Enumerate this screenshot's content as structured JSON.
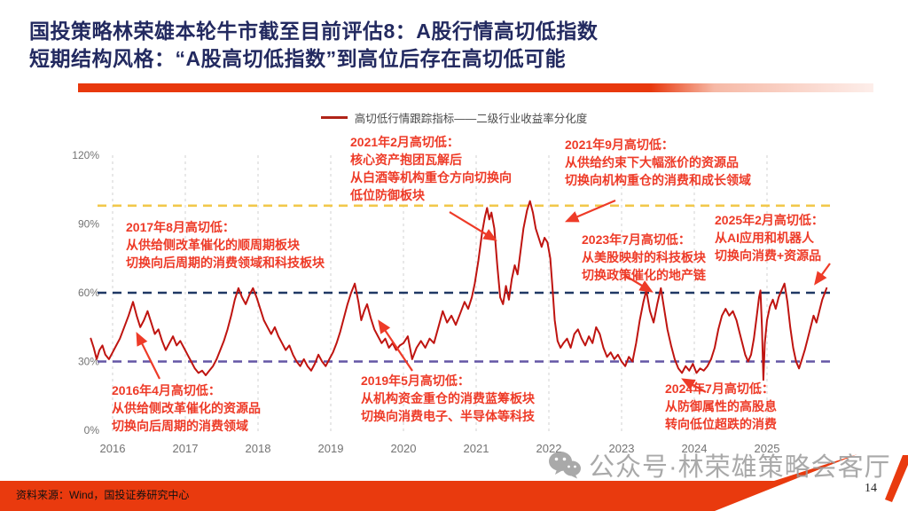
{
  "title": {
    "line1": "国投策略林荣雄本轮牛市截至目前评估8：A股行情高切低指数",
    "line2": "短期结构风格：“A股高切低指数”到高位后存在高切低可能"
  },
  "legend": {
    "label": "高切低行情跟踪指标——二级行业收益率分化度"
  },
  "colors": {
    "accent_red": "#e93a0e",
    "title_navy": "#232a60",
    "series_red": "#bf1410",
    "annotation_red": "#ee3b28",
    "ref_yellow": "#f2c84b",
    "ref_navy": "#1f3864",
    "ref_purple": "#6456a5",
    "grid_gray": "#d9d9d9",
    "axis_gray": "#737373"
  },
  "chart_data": {
    "type": "line",
    "title": "高切低行情跟踪指标——二级行业收益率分化度",
    "xlabel": "",
    "ylabel": "",
    "xlim": [
      2015.65,
      2025.95
    ],
    "ylim": [
      0,
      120
    ],
    "grid": "vertical-dashed",
    "legend_position": "top-center",
    "line_color": "#bf1410",
    "x_ticks": [
      2016,
      2017,
      2018,
      2019,
      2020,
      2021,
      2022,
      2023,
      2024,
      2025
    ],
    "y_ticks": [
      {
        "value": 120,
        "label": "120%"
      },
      {
        "value": 90,
        "label": "90%"
      },
      {
        "value": 60,
        "label": "60%"
      },
      {
        "value": 30,
        "label": "30%"
      },
      {
        "value": 0,
        "label": "0%"
      }
    ],
    "reference_lines": [
      {
        "value": 98,
        "color": "#f2c84b",
        "style": "dashed"
      },
      {
        "value": 60,
        "color": "#1f3864",
        "style": "dashed"
      },
      {
        "value": 30,
        "color": "#6456a5",
        "style": "dashed"
      }
    ],
    "points": [
      [
        2015.7,
        40
      ],
      [
        2015.74,
        36
      ],
      [
        2015.78,
        31
      ],
      [
        2015.82,
        35
      ],
      [
        2015.86,
        37
      ],
      [
        2015.9,
        33
      ],
      [
        2015.95,
        31
      ],
      [
        2016.0,
        34
      ],
      [
        2016.05,
        37
      ],
      [
        2016.1,
        40
      ],
      [
        2016.16,
        45
      ],
      [
        2016.22,
        50
      ],
      [
        2016.28,
        56
      ],
      [
        2016.33,
        50
      ],
      [
        2016.38,
        45
      ],
      [
        2016.43,
        48
      ],
      [
        2016.48,
        52
      ],
      [
        2016.53,
        47
      ],
      [
        2016.58,
        42
      ],
      [
        2016.63,
        44
      ],
      [
        2016.68,
        39
      ],
      [
        2016.73,
        35
      ],
      [
        2016.78,
        38
      ],
      [
        2016.83,
        41
      ],
      [
        2016.88,
        37
      ],
      [
        2016.93,
        39
      ],
      [
        2016.98,
        36
      ],
      [
        2017.03,
        33
      ],
      [
        2017.08,
        30
      ],
      [
        2017.13,
        27
      ],
      [
        2017.18,
        25
      ],
      [
        2017.23,
        26
      ],
      [
        2017.28,
        24
      ],
      [
        2017.33,
        26
      ],
      [
        2017.38,
        28
      ],
      [
        2017.43,
        31
      ],
      [
        2017.48,
        35
      ],
      [
        2017.53,
        39
      ],
      [
        2017.58,
        44
      ],
      [
        2017.63,
        50
      ],
      [
        2017.68,
        57
      ],
      [
        2017.73,
        62
      ],
      [
        2017.78,
        58
      ],
      [
        2017.83,
        55
      ],
      [
        2017.88,
        59
      ],
      [
        2017.93,
        62
      ],
      [
        2017.98,
        58
      ],
      [
        2018.03,
        53
      ],
      [
        2018.08,
        48
      ],
      [
        2018.13,
        45
      ],
      [
        2018.18,
        42
      ],
      [
        2018.23,
        45
      ],
      [
        2018.28,
        41
      ],
      [
        2018.33,
        38
      ],
      [
        2018.38,
        35
      ],
      [
        2018.43,
        37
      ],
      [
        2018.48,
        33
      ],
      [
        2018.53,
        30
      ],
      [
        2018.58,
        28
      ],
      [
        2018.63,
        31
      ],
      [
        2018.68,
        28
      ],
      [
        2018.73,
        26
      ],
      [
        2018.78,
        29
      ],
      [
        2018.83,
        33
      ],
      [
        2018.88,
        30
      ],
      [
        2018.93,
        28
      ],
      [
        2018.98,
        31
      ],
      [
        2019.03,
        34
      ],
      [
        2019.08,
        38
      ],
      [
        2019.13,
        43
      ],
      [
        2019.18,
        49
      ],
      [
        2019.23,
        55
      ],
      [
        2019.28,
        60
      ],
      [
        2019.33,
        64
      ],
      [
        2019.38,
        56
      ],
      [
        2019.42,
        48
      ],
      [
        2019.46,
        52
      ],
      [
        2019.5,
        55
      ],
      [
        2019.55,
        49
      ],
      [
        2019.6,
        44
      ],
      [
        2019.65,
        41
      ],
      [
        2019.7,
        38
      ],
      [
        2019.75,
        40
      ],
      [
        2019.8,
        36
      ],
      [
        2019.85,
        38
      ],
      [
        2019.9,
        35
      ],
      [
        2019.95,
        37
      ],
      [
        2020.0,
        38
      ],
      [
        2020.06,
        41
      ],
      [
        2020.12,
        31
      ],
      [
        2020.18,
        36
      ],
      [
        2020.24,
        39
      ],
      [
        2020.3,
        36
      ],
      [
        2020.36,
        40
      ],
      [
        2020.42,
        38
      ],
      [
        2020.48,
        45
      ],
      [
        2020.54,
        52
      ],
      [
        2020.6,
        47
      ],
      [
        2020.66,
        50
      ],
      [
        2020.72,
        46
      ],
      [
        2020.78,
        51
      ],
      [
        2020.84,
        56
      ],
      [
        2020.89,
        53
      ],
      [
        2020.94,
        58
      ],
      [
        2020.98,
        64
      ],
      [
        2021.03,
        74
      ],
      [
        2021.08,
        86
      ],
      [
        2021.12,
        93
      ],
      [
        2021.15,
        97
      ],
      [
        2021.18,
        92
      ],
      [
        2021.21,
        95
      ],
      [
        2021.25,
        88
      ],
      [
        2021.29,
        72
      ],
      [
        2021.33,
        58
      ],
      [
        2021.37,
        55
      ],
      [
        2021.41,
        63
      ],
      [
        2021.45,
        57
      ],
      [
        2021.49,
        66
      ],
      [
        2021.53,
        72
      ],
      [
        2021.57,
        68
      ],
      [
        2021.61,
        78
      ],
      [
        2021.65,
        88
      ],
      [
        2021.7,
        96
      ],
      [
        2021.74,
        100
      ],
      [
        2021.78,
        95
      ],
      [
        2021.82,
        88
      ],
      [
        2021.86,
        84
      ],
      [
        2021.9,
        80
      ],
      [
        2021.94,
        84
      ],
      [
        2021.98,
        82
      ],
      [
        2022.02,
        75
      ],
      [
        2022.05,
        62
      ],
      [
        2022.08,
        48
      ],
      [
        2022.12,
        39
      ],
      [
        2022.16,
        36
      ],
      [
        2022.2,
        38
      ],
      [
        2022.25,
        40
      ],
      [
        2022.3,
        36
      ],
      [
        2022.35,
        42
      ],
      [
        2022.4,
        44
      ],
      [
        2022.45,
        40
      ],
      [
        2022.5,
        37
      ],
      [
        2022.55,
        41
      ],
      [
        2022.6,
        38
      ],
      [
        2022.65,
        45
      ],
      [
        2022.7,
        42
      ],
      [
        2022.75,
        36
      ],
      [
        2022.8,
        32
      ],
      [
        2022.85,
        34
      ],
      [
        2022.9,
        31
      ],
      [
        2022.95,
        33
      ],
      [
        2023.0,
        30
      ],
      [
        2023.05,
        28
      ],
      [
        2023.1,
        32
      ],
      [
        2023.15,
        30
      ],
      [
        2023.2,
        38
      ],
      [
        2023.25,
        48
      ],
      [
        2023.3,
        56
      ],
      [
        2023.34,
        61
      ],
      [
        2023.39,
        52
      ],
      [
        2023.44,
        47
      ],
      [
        2023.49,
        55
      ],
      [
        2023.54,
        62
      ],
      [
        2023.58,
        54
      ],
      [
        2023.63,
        44
      ],
      [
        2023.68,
        37
      ],
      [
        2023.73,
        31
      ],
      [
        2023.78,
        27
      ],
      [
        2023.83,
        25
      ],
      [
        2023.88,
        28
      ],
      [
        2023.93,
        26
      ],
      [
        2023.98,
        29
      ],
      [
        2024.03,
        25
      ],
      [
        2024.08,
        27
      ],
      [
        2024.13,
        26
      ],
      [
        2024.18,
        28
      ],
      [
        2024.23,
        31
      ],
      [
        2024.28,
        36
      ],
      [
        2024.33,
        44
      ],
      [
        2024.38,
        50
      ],
      [
        2024.43,
        53
      ],
      [
        2024.48,
        50
      ],
      [
        2024.53,
        52
      ],
      [
        2024.58,
        48
      ],
      [
        2024.62,
        43
      ],
      [
        2024.66,
        38
      ],
      [
        2024.7,
        33
      ],
      [
        2024.74,
        30
      ],
      [
        2024.78,
        33
      ],
      [
        2024.82,
        40
      ],
      [
        2024.86,
        50
      ],
      [
        2024.89,
        58
      ],
      [
        2024.91,
        61
      ],
      [
        2024.93,
        45
      ],
      [
        2024.95,
        22
      ],
      [
        2024.97,
        38
      ],
      [
        2025.0,
        48
      ],
      [
        2025.04,
        54
      ],
      [
        2025.08,
        57
      ],
      [
        2025.12,
        53
      ],
      [
        2025.16,
        58
      ],
      [
        2025.2,
        61
      ],
      [
        2025.24,
        64
      ],
      [
        2025.28,
        56
      ],
      [
        2025.32,
        45
      ],
      [
        2025.36,
        36
      ],
      [
        2025.4,
        30
      ],
      [
        2025.44,
        27
      ],
      [
        2025.48,
        31
      ],
      [
        2025.52,
        35
      ],
      [
        2025.56,
        40
      ],
      [
        2025.6,
        45
      ],
      [
        2025.64,
        50
      ],
      [
        2025.68,
        47
      ],
      [
        2025.72,
        52
      ],
      [
        2025.76,
        57
      ],
      [
        2025.82,
        62
      ]
    ]
  },
  "annotations": [
    {
      "id": "2017-08",
      "text": "2017年8月高切低：\n从供给侧改革催化的顺周期板块\n切换向后周期的消费领域和科技板块"
    },
    {
      "id": "2021-02",
      "text": "2021年2月高切低：\n核心资产抱团瓦解后\n从白酒等机构重仓方向切换向\n低位防御板块"
    },
    {
      "id": "2021-09",
      "text": "2021年9月高切低：\n从供给约束下大幅涨价的资源品\n切换向机构重仓的消费和成长领域"
    },
    {
      "id": "2025-02",
      "text": "2025年2月高切低：\n从AI应用和机器人\n切换向消费+资源品"
    },
    {
      "id": "2023-07",
      "text": "2023年7月高切低：\n从美股映射的科技板块\n切换政策催化的地产链"
    },
    {
      "id": "2016-04",
      "text": "2016年4月高切低：\n从供给侧改革催化的资源品\n切换向后周期的消费领域"
    },
    {
      "id": "2019-05",
      "text": "2019年5月高切低：\n从机构资金重仓的消费蓝筹板块\n切换向消费电子、半导体等科技"
    },
    {
      "id": "2024-07",
      "text": "2024年7月高切低：\n从防御属性的高股息\n转向低位超跌的消费"
    }
  ],
  "watermark": {
    "text": "公众号·林荣雄策略会客厅"
  },
  "footer": {
    "source": "资料来源：Wind，国投证券研究中心",
    "page": "14"
  }
}
